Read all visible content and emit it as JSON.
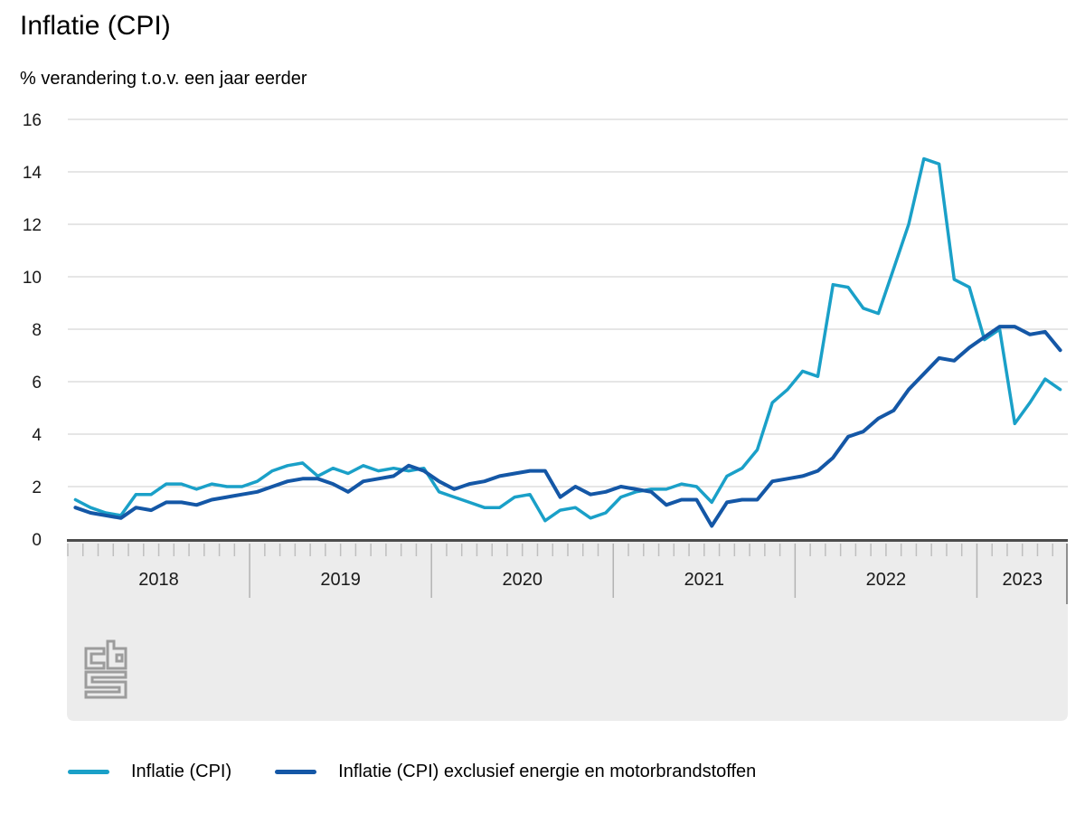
{
  "header": {
    "title": "Inflatie (CPI)",
    "subtitle": "% verandering t.o.v. een jaar eerder"
  },
  "branding": {
    "logo": "CBS"
  },
  "colors": {
    "cpi_line": "#1aa0c8",
    "core_line": "#1457a6",
    "gridline": "#cccccc",
    "zero_axis": "#4d4d4d",
    "axis_band": "#ececec",
    "tick": "#bfbfbf",
    "year_separator": "#b3b3b3",
    "axis_end": "#8f8f8f",
    "logo": "#9c9c9c",
    "text": "#1a1a1a"
  },
  "legend": {
    "items": [
      {
        "label": "Inflatie (CPI)",
        "color": "#1aa0c8"
      },
      {
        "label": "Inflatie (CPI) exclusief energie en motorbrandstoffen",
        "color": "#1457a6"
      }
    ]
  },
  "chart_data": {
    "type": "line",
    "title": "Inflatie (CPI)",
    "subtitle": "% verandering t.o.v. een jaar eerder",
    "unit": "%",
    "x_frequency": "monthly",
    "x_start": "2018-01",
    "x_end": "2023-06",
    "ylim": [
      0,
      16
    ],
    "yticks": [
      0,
      2,
      4,
      6,
      8,
      10,
      12,
      14,
      16
    ],
    "grid": "horizontal",
    "legend_position": "bottom",
    "year_labels": [
      "2018",
      "2019",
      "2020",
      "2021",
      "2022",
      "2023"
    ],
    "series": [
      {
        "name": "Inflatie (CPI)",
        "color": "#1aa0c8",
        "values": [
          1.5,
          1.2,
          1.0,
          0.9,
          1.7,
          1.7,
          2.1,
          2.1,
          1.9,
          2.1,
          2.0,
          2.0,
          2.2,
          2.6,
          2.8,
          2.9,
          2.4,
          2.7,
          2.5,
          2.8,
          2.6,
          2.7,
          2.6,
          2.7,
          1.8,
          1.6,
          1.4,
          1.2,
          1.2,
          1.6,
          1.7,
          0.7,
          1.1,
          1.2,
          0.8,
          1.0,
          1.6,
          1.8,
          1.9,
          1.9,
          2.1,
          2.0,
          1.4,
          2.4,
          2.7,
          3.4,
          5.2,
          5.7,
          6.4,
          6.2,
          9.7,
          9.6,
          8.8,
          8.6,
          10.3,
          12.0,
          14.5,
          14.3,
          9.9,
          9.6,
          7.6,
          8.0,
          4.4,
          5.2,
          6.1,
          5.7
        ]
      },
      {
        "name": "Inflatie (CPI) exclusief energie en motorbrandstoffen",
        "color": "#1457a6",
        "values": [
          1.2,
          1.0,
          0.9,
          0.8,
          1.2,
          1.1,
          1.4,
          1.4,
          1.3,
          1.5,
          1.6,
          1.7,
          1.8,
          2.0,
          2.2,
          2.3,
          2.3,
          2.1,
          1.8,
          2.2,
          2.3,
          2.4,
          2.8,
          2.6,
          2.2,
          1.9,
          2.1,
          2.2,
          2.4,
          2.5,
          2.6,
          2.6,
          1.6,
          2.0,
          1.7,
          1.8,
          2.0,
          1.9,
          1.8,
          1.3,
          1.5,
          1.5,
          0.5,
          1.4,
          1.5,
          1.5,
          2.2,
          2.3,
          2.4,
          2.6,
          3.1,
          3.9,
          4.1,
          4.6,
          4.9,
          5.7,
          6.3,
          6.9,
          6.8,
          7.3,
          7.7,
          8.1,
          8.1,
          7.8,
          7.9,
          7.2
        ]
      }
    ]
  }
}
